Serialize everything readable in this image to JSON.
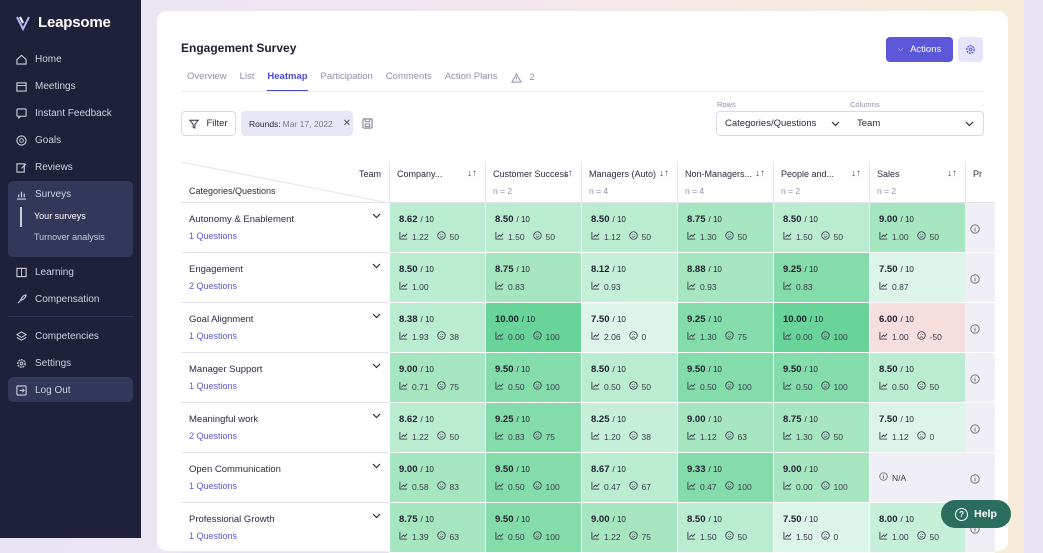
{
  "brand": {
    "name": "Leapsome"
  },
  "sidebar": {
    "items": [
      {
        "label": "Home",
        "icon": "home-icon"
      },
      {
        "label": "Meetings",
        "icon": "calendar-icon"
      },
      {
        "label": "Instant Feedback",
        "icon": "feedback-icon"
      },
      {
        "label": "Goals",
        "icon": "target-icon"
      },
      {
        "label": "Reviews",
        "icon": "edit-icon"
      },
      {
        "label": "Surveys",
        "icon": "chart-icon"
      },
      {
        "label": "Learning",
        "icon": "book-icon"
      },
      {
        "label": "Compensation",
        "icon": "rocket-icon"
      },
      {
        "label": "Competencies",
        "icon": "layers-icon"
      },
      {
        "label": "Settings",
        "icon": "gear-icon"
      },
      {
        "label": "Log Out",
        "icon": "logout-icon"
      }
    ],
    "surveys_sub": [
      "Your surveys",
      "Turnover analysis"
    ]
  },
  "header": {
    "title": "Engagement Survey",
    "tabs": [
      "Overview",
      "List",
      "Heatmap",
      "Participation",
      "Comments",
      "Action Plans"
    ],
    "active_tab": "Heatmap",
    "warning_count": "2",
    "actions_label": "Actions"
  },
  "toolbar": {
    "filter_label": "Filter",
    "chip_label": "Rounds:",
    "chip_value": "Mar 17, 2022",
    "rows_label": "Rows",
    "rows_value": "Categories/Questions",
    "columns_label": "Columns",
    "columns_value": "Team"
  },
  "table": {
    "corner_top": "Team",
    "corner_bottom": "Categories/Questions",
    "columns": [
      {
        "name": "Company...",
        "n": ""
      },
      {
        "name": "Customer Success",
        "n": "n = 2"
      },
      {
        "name": "Managers (Auto)",
        "n": "n = 4"
      },
      {
        "name": "Non-Managers...",
        "n": "n = 4"
      },
      {
        "name": "People and...",
        "n": "n = 2"
      },
      {
        "name": "Sales",
        "n": "n = 2"
      },
      {
        "name": "Pr",
        "n": ""
      }
    ],
    "rows": [
      {
        "name": "Autonomy & Enablement",
        "questions": "1 Questions",
        "cells": [
          {
            "score": "8.62",
            "trend": "1.22",
            "enps": "50"
          },
          {
            "score": "8.50",
            "trend": "1.50",
            "enps": "50"
          },
          {
            "score": "8.50",
            "trend": "1.12",
            "enps": "50"
          },
          {
            "score": "8.75",
            "trend": "1.30",
            "enps": "50"
          },
          {
            "score": "8.50",
            "trend": "1.50",
            "enps": "50"
          },
          {
            "score": "9.00",
            "trend": "1.00",
            "enps": "50"
          }
        ]
      },
      {
        "name": "Engagement",
        "questions": "2 Questions",
        "cells": [
          {
            "score": "8.50",
            "trend": "1.00",
            "enps": ""
          },
          {
            "score": "8.75",
            "trend": "0.83",
            "enps": ""
          },
          {
            "score": "8.12",
            "trend": "0.93",
            "enps": ""
          },
          {
            "score": "8.88",
            "trend": "0.93",
            "enps": ""
          },
          {
            "score": "9.25",
            "trend": "0.83",
            "enps": ""
          },
          {
            "score": "7.50",
            "trend": "0.87",
            "enps": ""
          }
        ]
      },
      {
        "name": "Goal Alignment",
        "questions": "1 Questions",
        "cells": [
          {
            "score": "8.38",
            "trend": "1.93",
            "enps": "38"
          },
          {
            "score": "10.00",
            "trend": "0.00",
            "enps": "100"
          },
          {
            "score": "7.50",
            "trend": "2.06",
            "enps": "0"
          },
          {
            "score": "9.25",
            "trend": "1.30",
            "enps": "75"
          },
          {
            "score": "10.00",
            "trend": "0.00",
            "enps": "100"
          },
          {
            "score": "6.00",
            "trend": "1.00",
            "enps": "-50"
          }
        ]
      },
      {
        "name": "Manager Support",
        "questions": "1 Questions",
        "cells": [
          {
            "score": "9.00",
            "trend": "0.71",
            "enps": "75"
          },
          {
            "score": "9.50",
            "trend": "0.50",
            "enps": "100"
          },
          {
            "score": "8.50",
            "trend": "0.50",
            "enps": "50"
          },
          {
            "score": "9.50",
            "trend": "0.50",
            "enps": "100"
          },
          {
            "score": "9.50",
            "trend": "0.50",
            "enps": "100"
          },
          {
            "score": "8.50",
            "trend": "0.50",
            "enps": "50"
          }
        ]
      },
      {
        "name": "Meaningful work",
        "questions": "2 Questions",
        "cells": [
          {
            "score": "8.62",
            "trend": "1.22",
            "enps": "50"
          },
          {
            "score": "9.25",
            "trend": "0.83",
            "enps": "75"
          },
          {
            "score": "8.25",
            "trend": "1.20",
            "enps": "38"
          },
          {
            "score": "9.00",
            "trend": "1.12",
            "enps": "63"
          },
          {
            "score": "8.75",
            "trend": "1.30",
            "enps": "50"
          },
          {
            "score": "7.50",
            "trend": "1.12",
            "enps": "0"
          }
        ]
      },
      {
        "name": "Open Communication",
        "questions": "1 Questions",
        "cells": [
          {
            "score": "9.00",
            "trend": "0.58",
            "enps": "83"
          },
          {
            "score": "9.50",
            "trend": "0.50",
            "enps": "100"
          },
          {
            "score": "8.67",
            "trend": "0.47",
            "enps": "67"
          },
          {
            "score": "9.33",
            "trend": "0.47",
            "enps": "100"
          },
          {
            "score": "9.00",
            "trend": "0.00",
            "enps": "100"
          },
          {
            "score": "N/A",
            "trend": "",
            "enps": ""
          }
        ]
      },
      {
        "name": "Professional Growth",
        "questions": "1 Questions",
        "cells": [
          {
            "score": "8.75",
            "trend": "1.39",
            "enps": "63"
          },
          {
            "score": "9.50",
            "trend": "0.50",
            "enps": "100"
          },
          {
            "score": "9.00",
            "trend": "1.22",
            "enps": "75"
          },
          {
            "score": "8.50",
            "trend": "1.50",
            "enps": "50"
          },
          {
            "score": "7.50",
            "trend": "1.50",
            "enps": "0"
          },
          {
            "score": "8.00",
            "trend": "1.00",
            "enps": "50"
          }
        ]
      }
    ],
    "scale_suffix": "/ 10"
  },
  "help": {
    "label": "Help"
  },
  "colors": {
    "accent": "#5b57d8",
    "sidebar": "#1e2139",
    "help": "#2c6e5d"
  }
}
